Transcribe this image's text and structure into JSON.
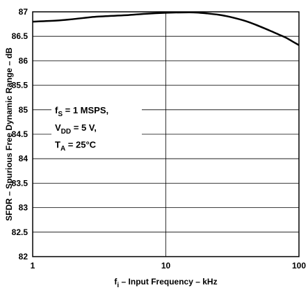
{
  "chart_data": {
    "type": "line",
    "xscale": "log",
    "xlim": [
      1,
      100
    ],
    "ylim": [
      82,
      87
    ],
    "xticks": [
      "1",
      "10",
      "100"
    ],
    "yticks": [
      "82",
      "82.5",
      "83",
      "83.5",
      "84",
      "84.5",
      "85",
      "85.5",
      "86",
      "86.5",
      "87"
    ],
    "xlabel": {
      "main": "f",
      "sub": "i",
      "rest": " – Input Frequency – kHz"
    },
    "ylabel": "SFDR – Spurious Free Dynamic Range – dB",
    "grid": true,
    "series": [
      {
        "x": [
          1,
          1.5,
          2,
          3,
          5,
          7,
          10,
          15,
          18,
          20,
          25,
          30,
          40,
          50,
          60,
          70,
          80,
          90,
          100
        ],
        "y": [
          86.8,
          86.82,
          86.85,
          86.9,
          86.93,
          86.96,
          86.98,
          86.99,
          86.98,
          86.97,
          86.94,
          86.9,
          86.81,
          86.71,
          86.62,
          86.54,
          86.47,
          86.39,
          86.32
        ],
        "color": "#000000"
      }
    ],
    "annotation": [
      {
        "main": "f",
        "sub": "S",
        "rest": " = 1 MSPS,"
      },
      {
        "main": "V",
        "sub": "DD",
        "rest": " = 5 V,"
      },
      {
        "main": "T",
        "sub": "A",
        "rest": "  = 25°C"
      }
    ]
  }
}
